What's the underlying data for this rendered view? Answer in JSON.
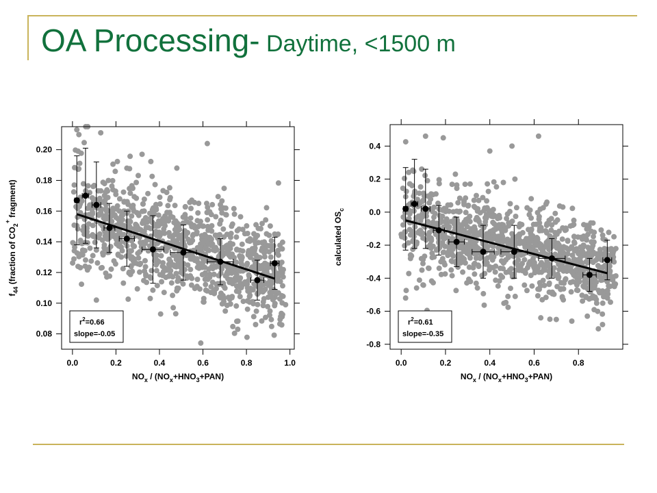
{
  "slide": {
    "title_main": "OA Processing-",
    "title_sub": " Daytime, <1500 m"
  },
  "colors": {
    "title": "#11713c",
    "rule": "#c9b35a",
    "scatter_points": "#999999",
    "binned_points": "#000000",
    "fit_line": "#000000"
  },
  "chart_data": [
    {
      "type": "scatter",
      "title": "",
      "xlabel": {
        "main": "NO",
        "sub1": "x",
        "mid": " / (NO",
        "sub2": "x",
        "mid2": "+HNO",
        "sub3": "3",
        "end": "+PAN)"
      },
      "ylabel": {
        "pre": "f",
        "sub": "44",
        "mid": " (fraction of CO",
        "sub2": "2",
        "sup": "+",
        "end": " fragment)"
      },
      "xlim": [
        -0.05,
        1.02
      ],
      "ylim": [
        0.07,
        0.215
      ],
      "xticks": [
        0.0,
        0.2,
        0.4,
        0.6,
        0.8,
        1.0
      ],
      "xtick_labels": [
        "0.0",
        "0.2",
        "0.4",
        "0.6",
        "0.8",
        "1.0"
      ],
      "yticks": [
        0.08,
        0.1,
        0.12,
        0.14,
        0.16,
        0.18,
        0.2
      ],
      "ytick_labels": [
        "0.08",
        "0.10",
        "0.12",
        "0.14",
        "0.16",
        "0.18",
        "0.20"
      ],
      "grid": false,
      "annotation": {
        "r2_label": "r",
        "r2_sup": "2",
        "r2_value": "=0.66",
        "slope_text": "slope=-0.05"
      },
      "fit_line": {
        "x": [
          0.02,
          0.93
        ],
        "y": [
          0.158,
          0.116
        ]
      },
      "binned_points": [
        {
          "x": 0.02,
          "y": 0.167,
          "xerr": 0.01,
          "yerr": 0.029
        },
        {
          "x": 0.06,
          "y": 0.17,
          "xerr": 0.015,
          "yerr": 0.031
        },
        {
          "x": 0.11,
          "y": 0.164,
          "xerr": 0.02,
          "yerr": 0.028
        },
        {
          "x": 0.17,
          "y": 0.149,
          "xerr": 0.025,
          "yerr": 0.016
        },
        {
          "x": 0.25,
          "y": 0.142,
          "xerr": 0.035,
          "yerr": 0.018
        },
        {
          "x": 0.37,
          "y": 0.135,
          "xerr": 0.05,
          "yerr": 0.022
        },
        {
          "x": 0.51,
          "y": 0.133,
          "xerr": 0.06,
          "yerr": 0.018
        },
        {
          "x": 0.68,
          "y": 0.127,
          "xerr": 0.06,
          "yerr": 0.015
        },
        {
          "x": 0.85,
          "y": 0.115,
          "xerr": 0.03,
          "yerr": 0.013
        },
        {
          "x": 0.93,
          "y": 0.126,
          "xerr": 0.02,
          "yerr": 0.017
        }
      ],
      "scatter": {
        "x_range": [
          0.0,
          0.97
        ],
        "y_at_x0": 0.158,
        "y_at_x1": 0.116,
        "spread": 0.016,
        "n_points": 1100,
        "outliers": [
          {
            "x": 0.02,
            "y": 0.213
          },
          {
            "x": 0.13,
            "y": 0.211
          },
          {
            "x": 0.62,
            "y": 0.204
          },
          {
            "x": 0.59,
            "y": 0.074
          },
          {
            "x": 0.76,
            "y": 0.083
          },
          {
            "x": 0.32,
            "y": 0.197
          },
          {
            "x": 0.48,
            "y": 0.188
          },
          {
            "x": 0.11,
            "y": 0.102
          },
          {
            "x": 0.93,
            "y": 0.145
          },
          {
            "x": 0.98,
            "y": 0.099
          }
        ]
      }
    },
    {
      "type": "scatter",
      "title": "",
      "xlabel": {
        "main": "NO",
        "sub1": "x",
        "mid": " / (NO",
        "sub2": "x",
        "mid2": "+HNO",
        "sub3": "3",
        "end": "+PAN)"
      },
      "ylabel": {
        "pre": "calculated OS",
        "sub": "c",
        "mid": "",
        "sub2": "",
        "sup": "",
        "end": ""
      },
      "xlim": [
        -0.05,
        1.0
      ],
      "ylim": [
        -0.83,
        0.53
      ],
      "xticks": [
        0.0,
        0.2,
        0.4,
        0.6,
        0.8
      ],
      "xtick_labels": [
        "0.0",
        "0.2",
        "0.4",
        "0.6",
        "0.8"
      ],
      "yticks": [
        -0.8,
        -0.6,
        -0.4,
        -0.2,
        0.0,
        0.2,
        0.4
      ],
      "ytick_labels": [
        "-0.8",
        "-0.6",
        "-0.4",
        "-0.2",
        "0.0",
        "0.2",
        "0.4"
      ],
      "grid": false,
      "annotation": {
        "r2_label": "r",
        "r2_sup": "2",
        "r2_value": "=0.61",
        "slope_text": "slope=-0.35"
      },
      "fit_line": {
        "x": [
          0.02,
          0.93
        ],
        "y": [
          -0.05,
          -0.37
        ]
      },
      "binned_points": [
        {
          "x": 0.02,
          "y": 0.02,
          "xerr": 0.01,
          "yerr": 0.25
        },
        {
          "x": 0.06,
          "y": 0.05,
          "xerr": 0.015,
          "yerr": 0.27
        },
        {
          "x": 0.11,
          "y": 0.02,
          "xerr": 0.02,
          "yerr": 0.24
        },
        {
          "x": 0.17,
          "y": -0.11,
          "xerr": 0.025,
          "yerr": 0.15
        },
        {
          "x": 0.25,
          "y": -0.18,
          "xerr": 0.035,
          "yerr": 0.15
        },
        {
          "x": 0.37,
          "y": -0.24,
          "xerr": 0.05,
          "yerr": 0.16
        },
        {
          "x": 0.51,
          "y": -0.24,
          "xerr": 0.06,
          "yerr": 0.16
        },
        {
          "x": 0.68,
          "y": -0.28,
          "xerr": 0.06,
          "yerr": 0.12
        },
        {
          "x": 0.85,
          "y": -0.38,
          "xerr": 0.03,
          "yerr": 0.1
        },
        {
          "x": 0.93,
          "y": -0.29,
          "xerr": 0.02,
          "yerr": 0.12
        }
      ],
      "scatter": {
        "x_range": [
          0.0,
          0.97
        ],
        "y_at_x0": -0.05,
        "y_at_x1": -0.37,
        "spread": 0.13,
        "n_points": 1100,
        "outliers": [
          {
            "x": 0.62,
            "y": 0.46
          },
          {
            "x": 0.11,
            "y": 0.46
          },
          {
            "x": 0.19,
            "y": 0.45
          },
          {
            "x": 0.02,
            "y": -0.52
          },
          {
            "x": 0.63,
            "y": -0.64
          },
          {
            "x": 0.7,
            "y": -0.65
          },
          {
            "x": 0.77,
            "y": -0.66
          },
          {
            "x": 0.5,
            "y": 0.4
          },
          {
            "x": 0.84,
            "y": -0.63
          },
          {
            "x": 0.4,
            "y": 0.37
          }
        ]
      }
    }
  ]
}
